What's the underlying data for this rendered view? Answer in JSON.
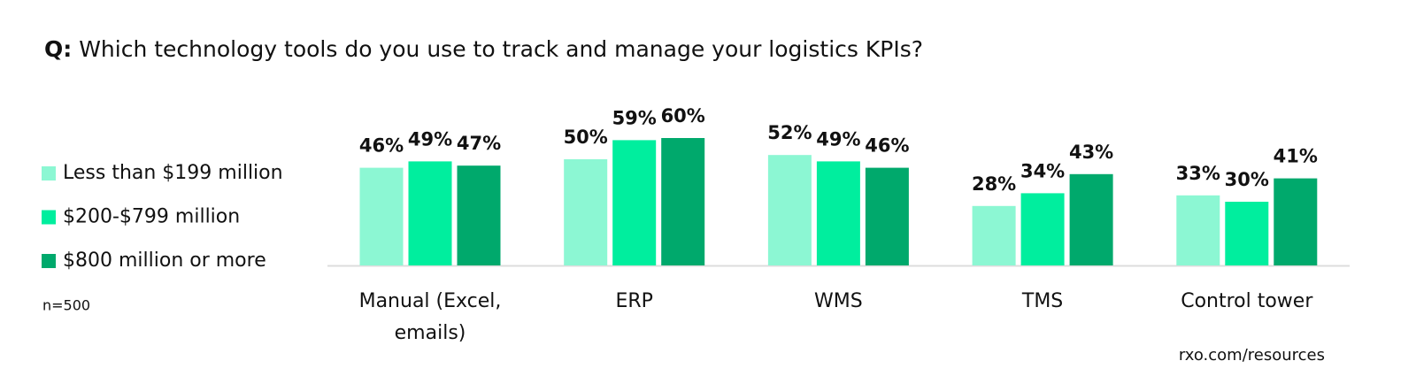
{
  "chart_data": {
    "type": "bar",
    "question_label": "Q:",
    "title": "Which technology tools do you use to track and manage your logistics KPIs?",
    "note": "n=500",
    "source": "rxo.com/resources",
    "categories": [
      "Manual (Excel, emails)",
      "ERP",
      "WMS",
      "TMS",
      "Control tower"
    ],
    "series": [
      {
        "name": "Less than $199 million",
        "color": "#8cf7d3",
        "values": [
          46,
          50,
          52,
          28,
          33
        ],
        "value_labels": [
          "46%",
          "50%",
          "52%",
          "28%",
          "33%"
        ]
      },
      {
        "name": "$200-$799 million",
        "color": "#00ee9e",
        "values": [
          49,
          59,
          49,
          34,
          30
        ],
        "value_labels": [
          "49%",
          "59%",
          "49%",
          "34%",
          "30%"
        ]
      },
      {
        "name": "$800 million or more",
        "color": "#00a96c",
        "values": [
          47,
          60,
          46,
          43,
          41
        ],
        "value_labels": [
          "47%",
          "60%",
          "46%",
          "43%",
          "41%"
        ]
      }
    ]
  }
}
